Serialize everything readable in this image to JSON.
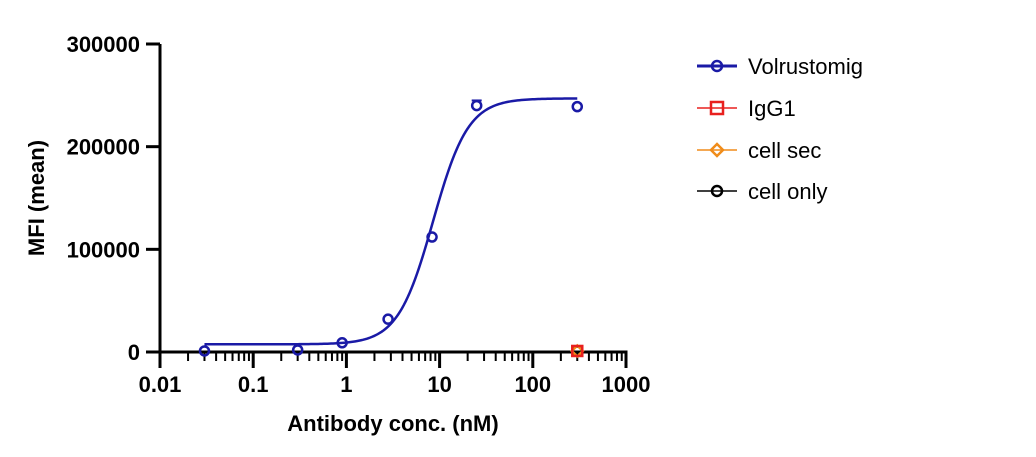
{
  "chart_data": {
    "type": "scatter",
    "title": "",
    "xlabel": "Antibody conc. (nM)",
    "ylabel": "MFI (mean)",
    "x_scale": "log",
    "xlim": [
      0.01,
      1000
    ],
    "ylim": [
      0,
      300000
    ],
    "x_ticks": [
      "0.01",
      "0.1",
      "1",
      "10",
      "100",
      "1000"
    ],
    "y_ticks": [
      "0",
      "100000",
      "200000",
      "300000"
    ],
    "x_tick_values": [
      0.01,
      0.1,
      1,
      10,
      100,
      1000
    ],
    "y_tick_values": [
      0,
      100000,
      200000,
      300000
    ],
    "grid": false,
    "legend_position": "right",
    "series": [
      {
        "name": "Volrustomig",
        "color": "#1a1aa6",
        "marker": "circle",
        "x": [
          0.03,
          0.3,
          0.9,
          2.8,
          8.3,
          25,
          300
        ],
        "y": [
          1000,
          2000,
          9000,
          32000,
          112000,
          240000,
          239000
        ],
        "error": [
          0,
          0,
          0,
          0,
          0,
          5000,
          0
        ],
        "fit": {
          "bottom": 7500,
          "top": 247000,
          "ec50": 8.5,
          "hill": 2.3,
          "x_range": [
            0.03,
            300
          ]
        }
      },
      {
        "name": "IgG1",
        "color": "#e8201e",
        "marker": "square",
        "x": [
          300
        ],
        "y": [
          1000
        ]
      },
      {
        "name": "cell sec",
        "color": "#f08c1a",
        "marker": "diamond",
        "x": [
          300
        ],
        "y": [
          1000
        ]
      },
      {
        "name": "cell only",
        "color": "#000000",
        "marker": "circle",
        "x": [
          300
        ],
        "y": [
          1000
        ]
      }
    ]
  }
}
